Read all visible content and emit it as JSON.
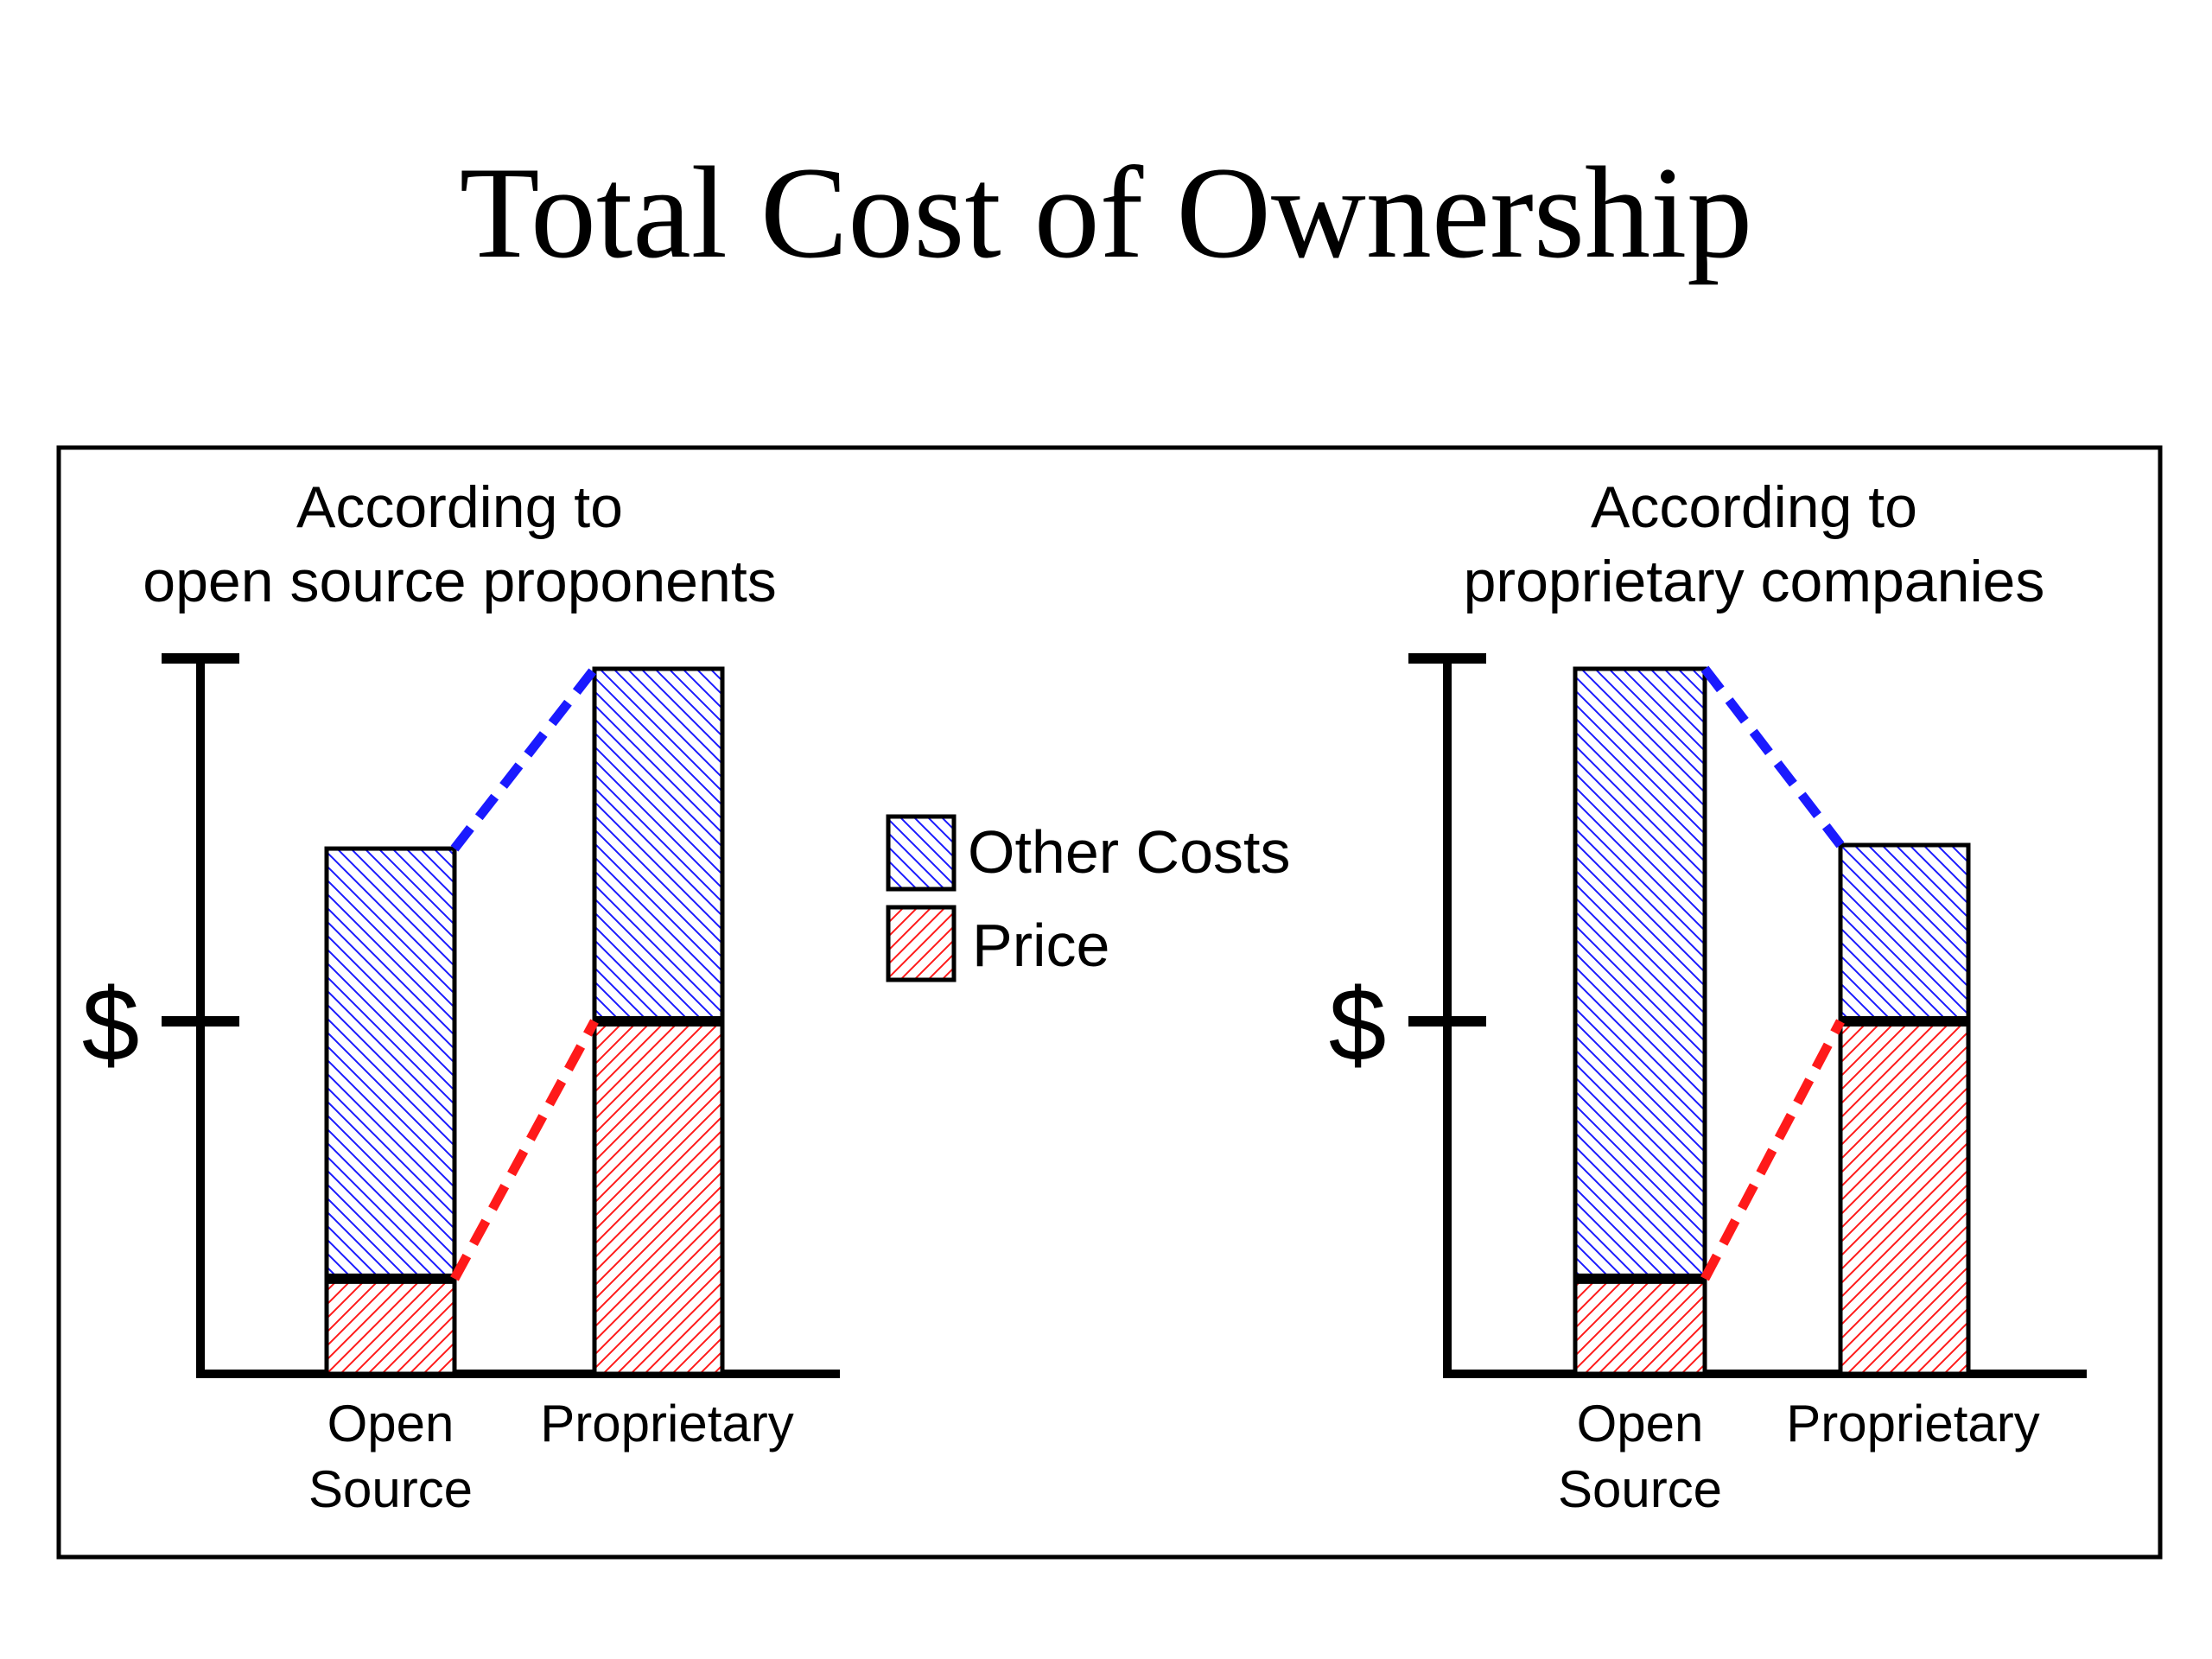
{
  "slide": {
    "title": "Total Cost of Ownership"
  },
  "legend": {
    "items": [
      {
        "label": "Other Costs",
        "hatch": "blue"
      },
      {
        "label": "Price",
        "hatch": "red"
      }
    ]
  },
  "colors": {
    "other_costs": "#1a1aff",
    "price": "#ff1a1a",
    "outline": "#000000"
  },
  "chart_data": [
    {
      "type": "bar",
      "stacked": true,
      "title": "According to open source proponents",
      "title_lines": [
        "According to",
        "open source proponents"
      ],
      "ylabel": "$",
      "yticks": [
        {
          "value": 1,
          "label": "$"
        }
      ],
      "ylim": [
        0,
        2.0
      ],
      "categories": [
        "Open Source",
        "Proprietary"
      ],
      "category_lines": [
        [
          "Open",
          "Source"
        ],
        [
          "Proprietary"
        ]
      ],
      "series": [
        {
          "name": "Price",
          "values": [
            0.27,
            1.0
          ]
        },
        {
          "name": "Other Costs",
          "values": [
            1.22,
            1.0
          ]
        }
      ],
      "connectors": true
    },
    {
      "type": "bar",
      "stacked": true,
      "title": "According to proprietary companies",
      "title_lines": [
        "According to",
        "proprietary companies"
      ],
      "ylabel": "$",
      "yticks": [
        {
          "value": 1,
          "label": "$"
        }
      ],
      "ylim": [
        0,
        2.0
      ],
      "categories": [
        "Open Source",
        "Proprietary"
      ],
      "category_lines": [
        [
          "Open",
          "Source"
        ],
        [
          "Proprietary"
        ]
      ],
      "series": [
        {
          "name": "Price",
          "values": [
            0.27,
            1.0
          ]
        },
        {
          "name": "Other Costs",
          "values": [
            1.73,
            0.5
          ]
        }
      ],
      "connectors": true
    }
  ]
}
